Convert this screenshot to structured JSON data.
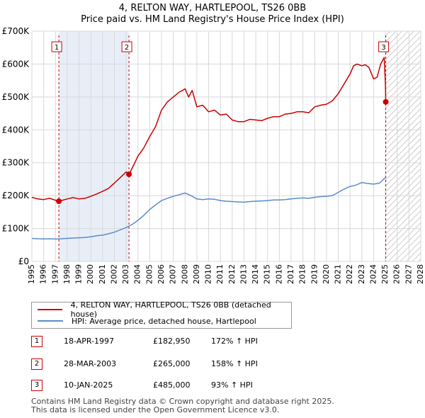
{
  "title": "4, RELTON WAY, HARTLEPOOL, TS26 0BB",
  "subtitle": "Price paid vs. HM Land Registry's House Price Index (HPI)",
  "chart_data": {
    "type": "line",
    "ylim": [
      0,
      700000
    ],
    "xlim": [
      1995,
      2028
    ],
    "y_ticks": [
      0,
      100000,
      200000,
      300000,
      400000,
      500000,
      600000,
      700000
    ],
    "y_tick_labels": [
      "£0",
      "£100K",
      "£200K",
      "£300K",
      "£400K",
      "£500K",
      "£600K",
      "£700K"
    ],
    "x_ticks": [
      1995,
      1996,
      1997,
      1998,
      1999,
      2000,
      2001,
      2002,
      2003,
      2004,
      2005,
      2006,
      2007,
      2008,
      2009,
      2010,
      2011,
      2012,
      2013,
      2014,
      2015,
      2016,
      2017,
      2018,
      2019,
      2020,
      2021,
      2022,
      2023,
      2024,
      2025,
      2026,
      2027,
      2028
    ],
    "x_tick_labels": [
      "1995",
      "1996",
      "1997",
      "1998",
      "1999",
      "2000",
      "2001",
      "2002",
      "2003",
      "2004",
      "2005",
      "2006",
      "2007",
      "2008",
      "2009",
      "2010",
      "2011",
      "2012",
      "2013",
      "2014",
      "2015",
      "2016",
      "2017",
      "2018",
      "2019",
      "2020",
      "2021",
      "2022",
      "2023",
      "2024",
      "2025",
      "2026",
      "2027",
      "2028"
    ],
    "grid": true,
    "highlight_span": [
      1997.29,
      2003.24
    ],
    "hatched_from": 2025.03,
    "series": [
      {
        "name": "4, RELTON WAY, HARTLEPOOL, TS26 0BB (detached house)",
        "color": "#cc0000",
        "x": [
          1995.0,
          1995.5,
          1996.0,
          1996.5,
          1997.0,
          1997.29,
          1997.6,
          1998.0,
          1998.5,
          1999.0,
          1999.5,
          2000.0,
          2000.5,
          2001.0,
          2001.5,
          2002.0,
          2002.5,
          2003.0,
          2003.24,
          2003.6,
          2004.0,
          2004.5,
          2005.0,
          2005.5,
          2006.0,
          2006.5,
          2007.0,
          2007.5,
          2007.8,
          2008.0,
          2008.3,
          2008.6,
          2009.0,
          2009.5,
          2010.0,
          2010.5,
          2011.0,
          2011.5,
          2012.0,
          2012.5,
          2013.0,
          2013.5,
          2014.0,
          2014.5,
          2015.0,
          2015.5,
          2016.0,
          2016.5,
          2017.0,
          2017.5,
          2018.0,
          2018.5,
          2019.0,
          2019.5,
          2020.0,
          2020.5,
          2021.0,
          2021.5,
          2022.0,
          2022.3,
          2022.6,
          2023.0,
          2023.3,
          2023.6,
          2024.0,
          2024.3,
          2024.6,
          2024.9,
          2025.0,
          2025.03
        ],
        "values": [
          195000,
          190000,
          188000,
          192000,
          186000,
          182950,
          186000,
          190000,
          194000,
          190000,
          192000,
          198000,
          205000,
          213000,
          222000,
          238000,
          255000,
          272000,
          265000,
          290000,
          320000,
          345000,
          380000,
          410000,
          460000,
          485000,
          500000,
          515000,
          520000,
          525000,
          500000,
          520000,
          470000,
          475000,
          455000,
          460000,
          445000,
          448000,
          430000,
          425000,
          425000,
          432000,
          430000,
          428000,
          435000,
          440000,
          440000,
          448000,
          450000,
          455000,
          455000,
          452000,
          470000,
          475000,
          478000,
          488000,
          510000,
          540000,
          570000,
          595000,
          600000,
          595000,
          598000,
          590000,
          555000,
          560000,
          600000,
          620000,
          540000,
          485000
        ]
      },
      {
        "name": "HPI: Average price, detached house, Hartlepool",
        "color": "#5b8cc8",
        "x": [
          1995.0,
          1995.5,
          1996.0,
          1996.5,
          1997.0,
          1997.5,
          1998.0,
          1998.5,
          1999.0,
          1999.5,
          2000.0,
          2000.5,
          2001.0,
          2001.5,
          2002.0,
          2002.5,
          2003.0,
          2003.5,
          2004.0,
          2004.5,
          2005.0,
          2005.5,
          2006.0,
          2006.5,
          2007.0,
          2007.5,
          2008.0,
          2008.5,
          2009.0,
          2009.5,
          2010.0,
          2010.5,
          2011.0,
          2011.5,
          2012.0,
          2012.5,
          2013.0,
          2013.5,
          2014.0,
          2014.5,
          2015.0,
          2015.5,
          2016.0,
          2016.5,
          2017.0,
          2017.5,
          2018.0,
          2018.5,
          2019.0,
          2019.5,
          2020.0,
          2020.5,
          2021.0,
          2021.5,
          2022.0,
          2022.5,
          2023.0,
          2023.5,
          2024.0,
          2024.5,
          2025.0
        ],
        "values": [
          70000,
          69000,
          68500,
          69000,
          68000,
          69000,
          70000,
          71000,
          72000,
          73000,
          75000,
          78000,
          80000,
          84000,
          89000,
          96000,
          103000,
          112000,
          125000,
          140000,
          158000,
          172000,
          185000,
          192000,
          198000,
          203000,
          208000,
          200000,
          190000,
          188000,
          190000,
          189000,
          185000,
          183000,
          182000,
          181000,
          180000,
          182000,
          183000,
          184000,
          185000,
          187000,
          187000,
          188000,
          190000,
          192000,
          193000,
          192000,
          195000,
          197000,
          198000,
          200000,
          210000,
          220000,
          228000,
          232000,
          240000,
          237000,
          235000,
          238000,
          255000
        ]
      }
    ],
    "sales": [
      {
        "label": "1",
        "year": 1997.29,
        "price": 182950
      },
      {
        "label": "2",
        "year": 2003.24,
        "price": 265000
      },
      {
        "label": "3",
        "year": 2025.03,
        "price": 485000
      }
    ]
  },
  "legend": {
    "property_label": "4, RELTON WAY, HARTLEPOOL, TS26 0BB (detached house)",
    "hpi_label": "HPI: Average price, detached house, Hartlepool"
  },
  "sales_table": [
    {
      "num": "1",
      "date": "18-APR-1997",
      "price": "£182,950",
      "hpi": "172% ↑ HPI"
    },
    {
      "num": "2",
      "date": "28-MAR-2003",
      "price": "£265,000",
      "hpi": "158% ↑ HPI"
    },
    {
      "num": "3",
      "date": "10-JAN-2025",
      "price": "£485,000",
      "hpi": "93% ↑ HPI"
    }
  ],
  "footer": {
    "line1": "Contains HM Land Registry data © Crown copyright and database right 2025.",
    "line2": "This data is licensed under the Open Government Licence v3.0."
  },
  "colors": {
    "property_line": "#cc0000",
    "hpi_line": "#5b8cc8",
    "highlight": "#e8eef8",
    "grid": "#d8d8d8"
  }
}
